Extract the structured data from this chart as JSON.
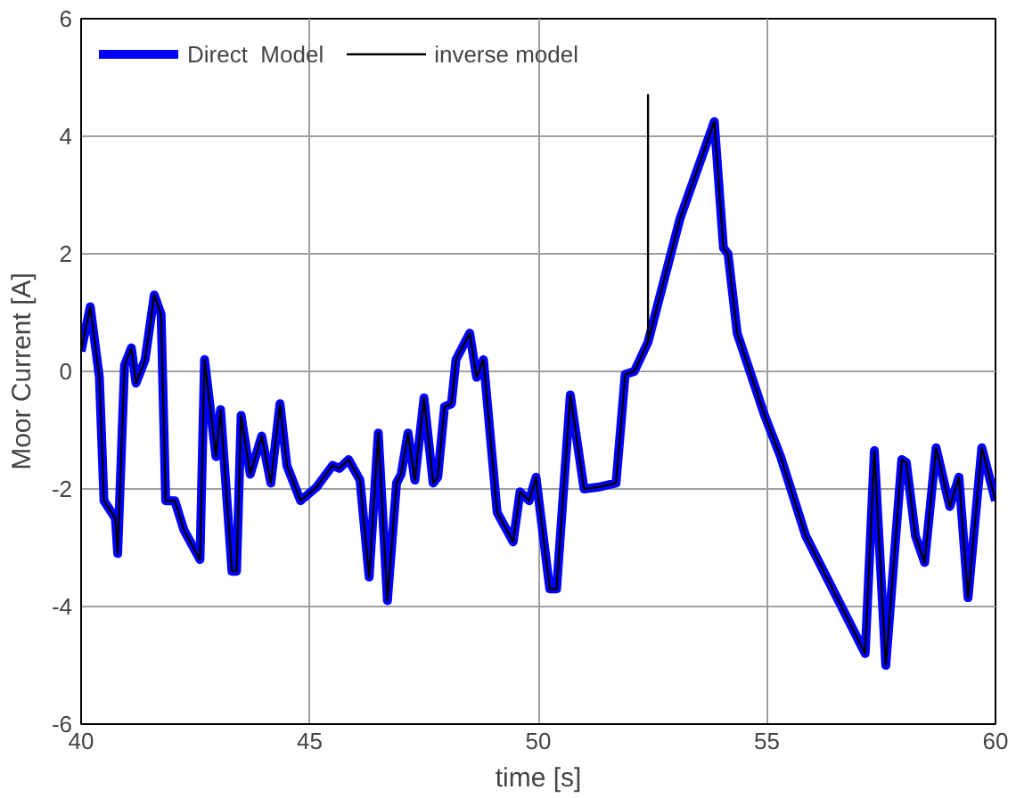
{
  "chart_data": {
    "type": "line",
    "xlabel": "time [s]",
    "ylabel": "Moor Current [A]",
    "xlim": [
      40,
      60
    ],
    "xticks": [
      40,
      45,
      50,
      55,
      60
    ],
    "ylim": [
      -6,
      6
    ],
    "yticks": [
      -6,
      -4,
      -2,
      0,
      2,
      4,
      6
    ],
    "grid": true,
    "legend": "top left",
    "marker": "none",
    "line_style": "solid",
    "series": [
      {
        "name": "Direct  Model",
        "color": "#0000ff",
        "x": [
          40.0,
          40.2,
          40.4,
          40.5,
          40.75,
          40.8,
          40.95,
          41.1,
          41.2,
          41.4,
          41.6,
          41.75,
          41.85,
          42.05,
          42.25,
          42.6,
          42.7,
          42.95,
          43.05,
          43.3,
          43.4,
          43.5,
          43.7,
          43.95,
          44.15,
          44.35,
          44.5,
          44.8,
          45.15,
          45.5,
          45.65,
          45.85,
          46.1,
          46.3,
          46.5,
          46.7,
          46.9,
          47.0,
          47.15,
          47.3,
          47.5,
          47.7,
          47.8,
          47.95,
          48.1,
          48.2,
          48.5,
          48.65,
          48.8,
          49.1,
          49.45,
          49.6,
          49.8,
          49.95,
          50.25,
          50.4,
          50.7,
          51.0,
          51.3,
          51.7,
          51.9,
          52.1,
          52.4,
          53.1,
          53.85,
          54.05,
          54.15,
          54.35,
          54.95,
          55.3,
          55.85,
          57.15,
          57.35,
          57.6,
          57.95,
          58.05,
          58.25,
          58.45,
          58.7,
          59.0,
          59.2,
          59.4,
          59.7,
          60.0
        ],
        "values": [
          0.34,
          1.1,
          -0.1,
          -2.2,
          -2.5,
          -3.1,
          0.1,
          0.4,
          -0.2,
          0.2,
          1.3,
          0.97,
          -2.2,
          -2.2,
          -2.7,
          -3.2,
          0.2,
          -1.45,
          -0.65,
          -3.4,
          -3.4,
          -0.75,
          -1.75,
          -1.1,
          -1.9,
          -0.55,
          -1.6,
          -2.2,
          -1.97,
          -1.6,
          -1.65,
          -1.5,
          -1.85,
          -3.5,
          -1.05,
          -3.9,
          -1.9,
          -1.75,
          -1.05,
          -1.85,
          -0.45,
          -1.9,
          -1.8,
          -0.6,
          -0.55,
          0.2,
          0.65,
          -0.1,
          0.2,
          -2.4,
          -2.9,
          -2.05,
          -2.2,
          -1.8,
          -3.7,
          -3.7,
          -0.4,
          -2.0,
          -1.97,
          -1.9,
          -0.05,
          0.0,
          0.5,
          2.6,
          4.25,
          2.1,
          2.0,
          0.65,
          -0.75,
          -1.45,
          -2.8,
          -4.8,
          -1.35,
          -5.0,
          -1.5,
          -1.55,
          -2.8,
          -3.25,
          -1.3,
          -2.3,
          -1.8,
          -3.85,
          -1.3,
          -2.2
        ]
      },
      {
        "name": "inverse model",
        "color": "#000000",
        "x": [
          40.0,
          40.2,
          40.4,
          40.5,
          40.75,
          40.8,
          40.95,
          41.1,
          41.2,
          41.4,
          41.6,
          41.75,
          41.85,
          42.05,
          42.25,
          42.6,
          42.7,
          42.95,
          43.05,
          43.3,
          43.4,
          43.5,
          43.7,
          43.95,
          44.15,
          44.35,
          44.5,
          44.8,
          45.15,
          45.5,
          45.65,
          45.85,
          46.1,
          46.3,
          46.5,
          46.7,
          46.9,
          47.0,
          47.15,
          47.3,
          47.5,
          47.7,
          47.8,
          47.95,
          48.1,
          48.2,
          48.5,
          48.65,
          48.8,
          49.1,
          49.45,
          49.6,
          49.8,
          49.95,
          50.25,
          50.4,
          50.7,
          51.0,
          51.3,
          51.7,
          51.9,
          52.1,
          52.4,
          52.4,
          52.4,
          53.1,
          53.85,
          54.05,
          54.15,
          54.35,
          54.95,
          55.3,
          55.85,
          57.15,
          57.35,
          57.6,
          57.95,
          58.05,
          58.25,
          58.45,
          58.7,
          59.0,
          59.2,
          59.4,
          59.7,
          60.0
        ],
        "values": [
          0.34,
          1.1,
          -0.1,
          -2.2,
          -2.5,
          -3.1,
          0.1,
          0.4,
          -0.2,
          0.2,
          1.3,
          0.97,
          -2.2,
          -2.2,
          -2.7,
          -3.2,
          0.2,
          -1.45,
          -0.65,
          -3.4,
          -3.4,
          -0.75,
          -1.75,
          -1.1,
          -1.9,
          -0.55,
          -1.6,
          -2.2,
          -1.97,
          -1.6,
          -1.65,
          -1.5,
          -1.85,
          -3.5,
          -1.05,
          -3.9,
          -1.9,
          -1.75,
          -1.05,
          -1.85,
          -0.45,
          -1.9,
          -1.8,
          -0.6,
          -0.55,
          0.2,
          0.65,
          -0.1,
          0.2,
          -2.4,
          -2.9,
          -2.05,
          -2.2,
          -1.8,
          -3.7,
          -3.7,
          -0.4,
          -2.0,
          -1.97,
          -1.9,
          -0.05,
          0.0,
          0.5,
          4.7,
          0.5,
          2.6,
          4.25,
          2.1,
          2.0,
          0.65,
          -0.75,
          -1.45,
          -2.8,
          -4.8,
          -1.35,
          -5.0,
          -1.5,
          -1.55,
          -2.8,
          -3.25,
          -1.3,
          -2.3,
          -1.8,
          -3.85,
          -1.3,
          -2.2
        ]
      }
    ]
  }
}
